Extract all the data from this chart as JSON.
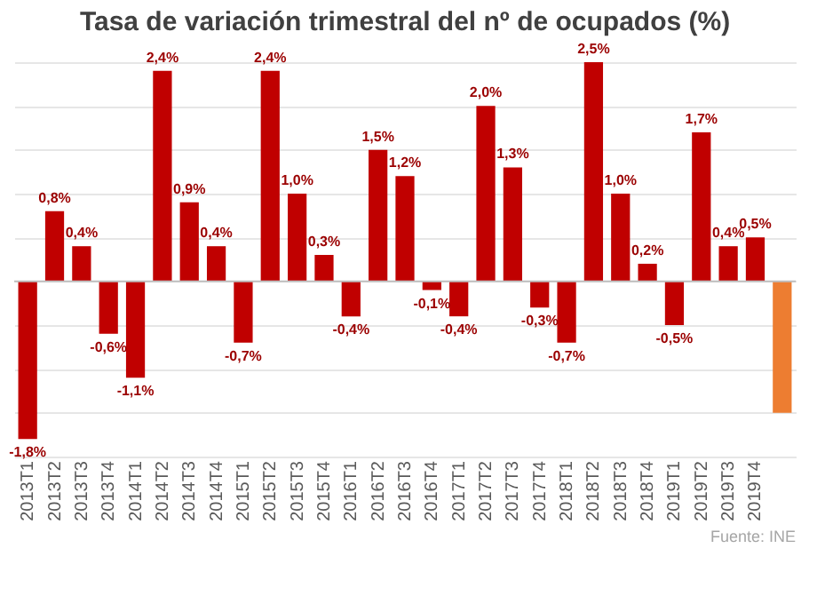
{
  "chart_data": {
    "type": "bar",
    "title": "Tasa de variación trimestral del nº de ocupados (%)",
    "categories": [
      "2013T1",
      "2013T2",
      "2013T3",
      "2013T4",
      "2014T1",
      "2014T2",
      "2014T3",
      "2014T4",
      "2015T1",
      "2015T2",
      "2015T3",
      "2015T4",
      "2016T1",
      "2016T2",
      "2016T3",
      "2016T4",
      "2017T1",
      "2017T2",
      "2017T3",
      "2017T4",
      "2018T1",
      "2018T2",
      "2018T3",
      "2018T4",
      "2019T1",
      "2019T2",
      "2019T3",
      "2019T4",
      null
    ],
    "values": [
      -1.8,
      0.8,
      0.4,
      -0.6,
      -1.1,
      2.4,
      0.9,
      0.4,
      -0.7,
      2.4,
      1.0,
      0.3,
      -0.4,
      1.5,
      1.2,
      -0.1,
      -0.4,
      2.0,
      1.3,
      -0.3,
      -0.7,
      2.5,
      1.0,
      0.2,
      -0.5,
      1.7,
      0.4,
      0.5,
      -1.5
    ],
    "value_labels": [
      "-1,8%",
      "0,8%",
      "0,4%",
      "-0,6%",
      "-1,1%",
      "2,4%",
      "0,9%",
      "0,4%",
      "-0,7%",
      "2,4%",
      "1,0%",
      "0,3%",
      "-0,4%",
      "1,5%",
      "1,2%",
      "-0,1%",
      "-0,4%",
      "2,0%",
      "1,3%",
      "-0,3%",
      "-0,7%",
      "2,5%",
      "1,0%",
      "0,2%",
      "-0,5%",
      "1,7%",
      "0,4%",
      "0,5%",
      null
    ],
    "colors": [
      "#c00000",
      "#c00000",
      "#c00000",
      "#c00000",
      "#c00000",
      "#c00000",
      "#c00000",
      "#c00000",
      "#c00000",
      "#c00000",
      "#c00000",
      "#c00000",
      "#c00000",
      "#c00000",
      "#c00000",
      "#c00000",
      "#c00000",
      "#c00000",
      "#c00000",
      "#c00000",
      "#c00000",
      "#c00000",
      "#c00000",
      "#c00000",
      "#c00000",
      "#c00000",
      "#c00000",
      "#c00000",
      "#ed7d31"
    ],
    "tick_labels": "x",
    "grid": "y",
    "annotations": [
      "Fuente: INE"
    ]
  }
}
